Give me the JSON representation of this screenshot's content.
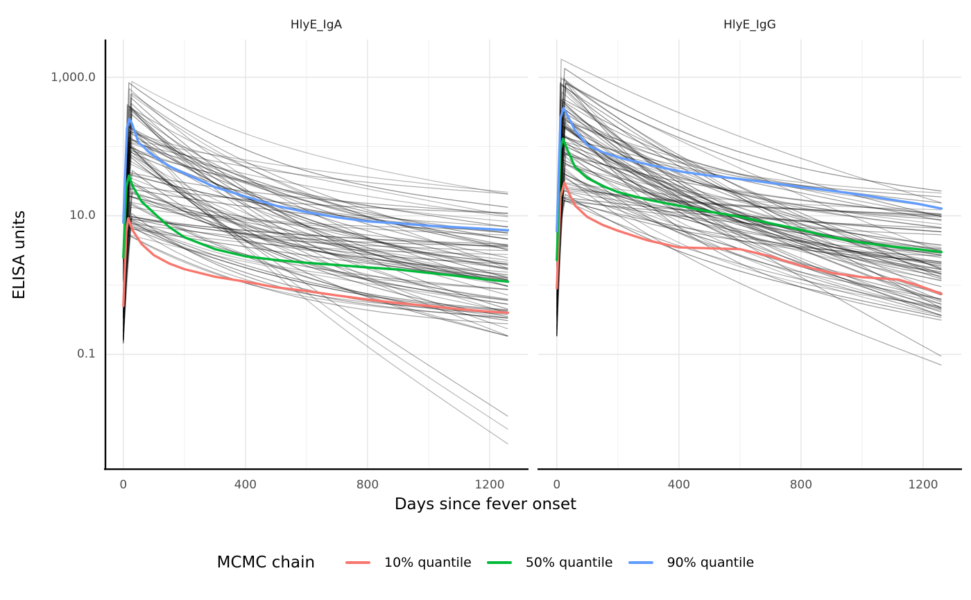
{
  "titles": {
    "y_axis": "ELISA units",
    "x_axis": "Days since fever onset"
  },
  "legend": {
    "title": "MCMC chain",
    "items": [
      {
        "label": "10% quantile",
        "color": "#F8766D"
      },
      {
        "label": "50% quantile",
        "color": "#00BA38"
      },
      {
        "label": "90% quantile",
        "color": "#619CFF"
      }
    ]
  },
  "colors": {
    "grid_major": "#E5E5E5",
    "grid_minor": "#EFEFEF",
    "axis_line": "#000000",
    "tick_text": "#4D4D4D",
    "ensemble_line": "#000000"
  },
  "chart_data": {
    "type": "line",
    "facets": [
      "HlyE_IgA",
      "HlyE_IgG"
    ],
    "x": {
      "label": "Days since fever onset",
      "major_ticks": [
        0,
        400,
        800,
        1200
      ],
      "minor_ticks": [
        200,
        600,
        1000
      ],
      "domain": [
        -61,
        1325
      ]
    },
    "y": {
      "label": "ELISA units",
      "scale": "log10",
      "major_ticks": [
        0.1,
        10,
        1000
      ],
      "tick_labels": [
        "0.1",
        "10.0",
        "1,000.0"
      ],
      "minor_ticks": [
        1,
        100
      ],
      "domain_log10": [
        -2.645,
        3.545
      ]
    },
    "panels": [
      {
        "facet": "HlyE_IgA",
        "series": [
          {
            "name": "10% quantile",
            "color": "#F8766D",
            "points": [
              [
                0,
                0.5
              ],
              [
                10,
                6
              ],
              [
                16,
                9.2
              ],
              [
                30,
                6.2
              ],
              [
                60,
                3.9
              ],
              [
                100,
                2.7
              ],
              [
                150,
                2.05
              ],
              [
                200,
                1.7
              ],
              [
                300,
                1.32
              ],
              [
                400,
                1.12
              ],
              [
                500,
                0.93
              ],
              [
                600,
                0.82
              ],
              [
                700,
                0.71
              ],
              [
                800,
                0.62
              ],
              [
                900,
                0.55
              ],
              [
                1000,
                0.5
              ],
              [
                1100,
                0.45
              ],
              [
                1180,
                0.42
              ],
              [
                1260,
                0.4
              ]
            ]
          },
          {
            "name": "50% quantile",
            "color": "#00BA38",
            "points": [
              [
                0,
                2.5
              ],
              [
                10,
                26
              ],
              [
                18,
                38
              ],
              [
                30,
                27
              ],
              [
                60,
                16
              ],
              [
                100,
                11
              ],
              [
                150,
                6.9
              ],
              [
                200,
                4.9
              ],
              [
                300,
                3.3
              ],
              [
                400,
                2.6
              ],
              [
                500,
                2.3
              ],
              [
                600,
                2.1
              ],
              [
                700,
                1.95
              ],
              [
                800,
                1.8
              ],
              [
                900,
                1.68
              ],
              [
                1000,
                1.5
              ],
              [
                1100,
                1.35
              ],
              [
                1180,
                1.22
              ],
              [
                1260,
                1.12
              ]
            ]
          },
          {
            "name": "90% quantile",
            "color": "#619CFF",
            "points": [
              [
                0,
                8
              ],
              [
                12,
                185
              ],
              [
                20,
                250
              ],
              [
                28,
                215
              ],
              [
                40,
                152
              ],
              [
                50,
                112
              ],
              [
                62,
                104
              ],
              [
                80,
                86
              ],
              [
                100,
                73
              ],
              [
                150,
                52
              ],
              [
                200,
                41
              ],
              [
                300,
                26
              ],
              [
                400,
                19
              ],
              [
                500,
                14
              ],
              [
                600,
                11.3
              ],
              [
                700,
                9.5
              ],
              [
                800,
                8.3
              ],
              [
                900,
                7.8
              ],
              [
                1000,
                7.2
              ],
              [
                1100,
                6.8
              ],
              [
                1180,
                6.5
              ],
              [
                1260,
                6.2
              ]
            ]
          }
        ]
      },
      {
        "facet": "HlyE_IgG",
        "series": [
          {
            "name": "10% quantile",
            "color": "#F8766D",
            "points": [
              [
                0,
                0.9
              ],
              [
                12,
                19
              ],
              [
                25,
                30
              ],
              [
                40,
                21
              ],
              [
                60,
                14
              ],
              [
                100,
                9.6
              ],
              [
                150,
                7.4
              ],
              [
                200,
                6.1
              ],
              [
                300,
                4.4
              ],
              [
                400,
                3.5
              ],
              [
                500,
                3.4
              ],
              [
                600,
                3.3
              ],
              [
                700,
                2.6
              ],
              [
                800,
                1.9
              ],
              [
                900,
                1.5
              ],
              [
                1000,
                1.3
              ],
              [
                1060,
                1.25
              ],
              [
                1120,
                1.2
              ],
              [
                1180,
                1.0
              ],
              [
                1260,
                0.75
              ]
            ]
          },
          {
            "name": "50% quantile",
            "color": "#00BA38",
            "points": [
              [
                0,
                2.3
              ],
              [
                12,
                92
              ],
              [
                20,
                130
              ],
              [
                30,
                100
              ],
              [
                60,
                50
              ],
              [
                100,
                35
              ],
              [
                150,
                27
              ],
              [
                200,
                22
              ],
              [
                300,
                17
              ],
              [
                400,
                14
              ],
              [
                500,
                11.5
              ],
              [
                600,
                9.7
              ],
              [
                700,
                7.8
              ],
              [
                800,
                6.3
              ],
              [
                900,
                4.9
              ],
              [
                1000,
                4.1
              ],
              [
                1100,
                3.6
              ],
              [
                1180,
                3.3
              ],
              [
                1260,
                3.0
              ]
            ]
          },
          {
            "name": "90% quantile",
            "color": "#619CFF",
            "points": [
              [
                0,
                6
              ],
              [
                12,
                255
              ],
              [
                22,
                360
              ],
              [
                35,
                280
              ],
              [
                60,
                170
              ],
              [
                100,
                105
              ],
              [
                150,
                83
              ],
              [
                200,
                70
              ],
              [
                300,
                55
              ],
              [
                400,
                44
              ],
              [
                500,
                38
              ],
              [
                600,
                34
              ],
              [
                700,
                30
              ],
              [
                800,
                26
              ],
              [
                900,
                23
              ],
              [
                1000,
                20
              ],
              [
                1100,
                17
              ],
              [
                1180,
                15
              ],
              [
                1260,
                12.7
              ]
            ]
          }
        ]
      }
    ],
    "ensemble": {
      "description": "individual MCMC posterior antibody trajectories (grey spaghetti lines)",
      "color": "#000000",
      "opacity_range": [
        0.26,
        0.44
      ],
      "stroke_width": 1.25,
      "day_range": [
        0,
        1260
      ],
      "panels": [
        {
          "facet": "HlyE_IgA",
          "count": 80,
          "seed": 11,
          "base_log10": [
            -0.85,
            0.35
          ],
          "peak_day": [
            11,
            30
          ],
          "peak_log10": [
            0.7,
            2.85
          ],
          "end_log10": [
            -0.75,
            1.35
          ],
          "low_outliers": {
            "count": 3,
            "end_log10": [
              -2.4,
              -1.8
            ]
          },
          "high_peaks": {
            "count": 2,
            "peak_log10": [
              2.9,
              3.0
            ]
          }
        },
        {
          "facet": "HlyE_IgG",
          "count": 80,
          "seed": 23,
          "base_log10": [
            -0.75,
            0.9
          ],
          "peak_day": [
            11,
            30
          ],
          "peak_log10": [
            1.2,
            3.0
          ],
          "end_log10": [
            -0.55,
            1.35
          ],
          "low_outliers": {
            "count": 2,
            "end_log10": [
              -1.6,
              -1.0
            ]
          },
          "high_peaks": {
            "count": 2,
            "peak_log10": [
              3.05,
              3.27
            ]
          }
        }
      ]
    }
  }
}
